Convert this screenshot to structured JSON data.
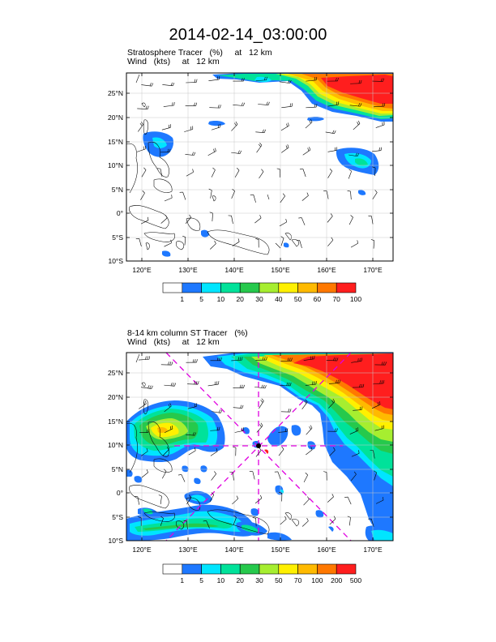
{
  "title": "2014-02-14_03:00:00",
  "panels": [
    {
      "id": "top",
      "label_line1": "Stratosphere Tracer   (%)     at   12 km",
      "label_line2": "Wind   (kts)     at   12 km",
      "colorbar": {
        "labels": [
          "1",
          "5",
          "10",
          "20",
          "30",
          "40",
          "50",
          "60",
          "70",
          "100"
        ],
        "colors": [
          "#ffffff",
          "#1e78ff",
          "#00e5ff",
          "#00e29a",
          "#26c94c",
          "#a6ee30",
          "#fff000",
          "#ffba00",
          "#ff7800",
          "#ff1e1e"
        ]
      }
    },
    {
      "id": "bottom",
      "label_line1": "8-14 km column ST Tracer   (%)",
      "label_line2": "Wind   (kts)     at   12 km",
      "colorbar": {
        "labels": [
          "1",
          "5",
          "10",
          "20",
          "30",
          "50",
          "70",
          "100",
          "200",
          "500"
        ],
        "colors": [
          "#ffffff",
          "#1e78ff",
          "#00e5ff",
          "#00e29a",
          "#26c94c",
          "#a6ee30",
          "#fff000",
          "#ffba00",
          "#ff7800",
          "#ff1e1e"
        ]
      }
    }
  ],
  "map": {
    "lon_range": [
      115,
      173
    ],
    "lat_range": [
      -10,
      29
    ],
    "lon_ticks": [
      "120°E",
      "130°E",
      "140°E",
      "150°E",
      "160°E",
      "170°E"
    ],
    "lat_ticks": [
      "25°N",
      "20°N",
      "15°N",
      "10°N",
      "5°N",
      "0°",
      "5°S",
      "10°S"
    ]
  }
}
